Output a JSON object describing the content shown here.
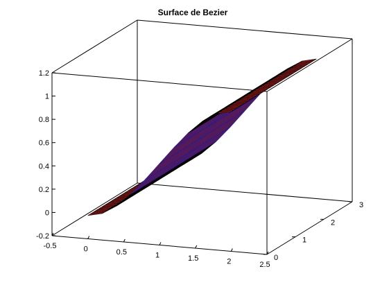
{
  "chart_data": {
    "type": "surface",
    "title": "Surface de Bezier",
    "xlabel": "",
    "ylabel": "",
    "zlabel": "",
    "grid": false,
    "xlim": [
      -0.5,
      2.5
    ],
    "ylim": [
      0,
      3
    ],
    "zlim": [
      -0.2,
      1.2
    ],
    "x_ticks": [
      "-0.5",
      "0",
      "0.5",
      "1",
      "1.5",
      "2",
      "2.5"
    ],
    "y_ticks": [
      "0",
      "1",
      "2",
      "3"
    ],
    "z_ticks": [
      "-0.2",
      "0",
      "0.2",
      "0.4",
      "0.6",
      "0.8",
      "1",
      "1.2"
    ],
    "surface": {
      "x_range": [
        0,
        2
      ],
      "y_range": [
        0,
        3
      ],
      "profile_x": [
        0,
        0.2,
        0.4,
        0.6,
        0.8,
        1.0,
        1.2,
        1.4,
        1.6,
        1.8,
        2.0
      ],
      "profile_z": [
        0,
        0.028,
        0.104,
        0.216,
        0.352,
        0.5,
        0.648,
        0.784,
        0.896,
        0.972,
        1.0
      ],
      "face_color": "#8b1a1a",
      "edge_color": "#000000",
      "shadow_edge_color": "#1a1aa0"
    }
  }
}
